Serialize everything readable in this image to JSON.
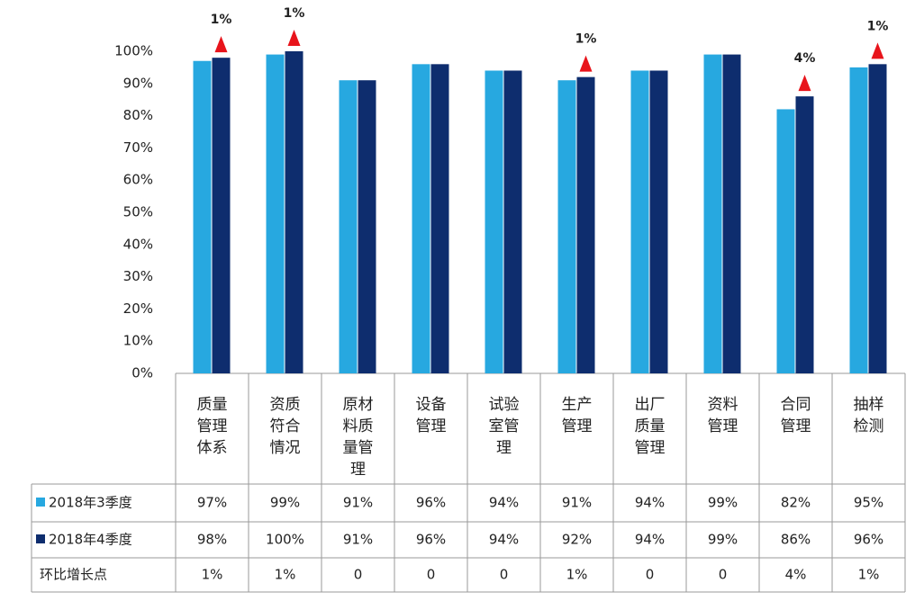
{
  "chart_data": {
    "type": "bar",
    "categories": [
      "质量管理体系",
      "资质符合情况",
      "原材料质量管理",
      "设备管理",
      "试验室管理",
      "生产管理",
      "出厂质量管理",
      "资料管理",
      "合同管理",
      "抽样检测"
    ],
    "series": [
      {
        "name": "2018年3季度",
        "color": "#27a8e0",
        "values": [
          97,
          99,
          91,
          96,
          94,
          91,
          94,
          99,
          82,
          95
        ],
        "value_labels": [
          "97%",
          "99%",
          "91%",
          "96%",
          "94%",
          "91%",
          "94%",
          "99%",
          "82%",
          "95%"
        ]
      },
      {
        "name": "2018年4季度",
        "color": "#0e2d6e",
        "values": [
          98,
          100,
          91,
          96,
          94,
          92,
          94,
          99,
          86,
          96
        ],
        "value_labels": [
          "98%",
          "100%",
          "91%",
          "96%",
          "94%",
          "92%",
          "94%",
          "99%",
          "86%",
          "96%"
        ]
      }
    ],
    "growth": {
      "name": "环比增长点",
      "color": "#e8141b",
      "values": [
        1,
        1,
        0,
        0,
        0,
        1,
        0,
        0,
        4,
        1
      ],
      "value_labels": [
        "1%",
        "1%",
        "0",
        "0",
        "0",
        "1%",
        "0",
        "0",
        "4%",
        "1%"
      ]
    },
    "ylim": [
      0,
      100
    ],
    "yticks": [
      {
        "value": 0,
        "label": "0%"
      },
      {
        "value": 10,
        "label": "10%"
      },
      {
        "value": 20,
        "label": "20%"
      },
      {
        "value": 30,
        "label": "30%"
      },
      {
        "value": 40,
        "label": "40%"
      },
      {
        "value": 50,
        "label": "50%"
      },
      {
        "value": 60,
        "label": "60%"
      },
      {
        "value": 70,
        "label": "70%"
      },
      {
        "value": 80,
        "label": "80%"
      },
      {
        "value": 90,
        "label": "90%"
      },
      {
        "value": 100,
        "label": "100%"
      }
    ]
  }
}
